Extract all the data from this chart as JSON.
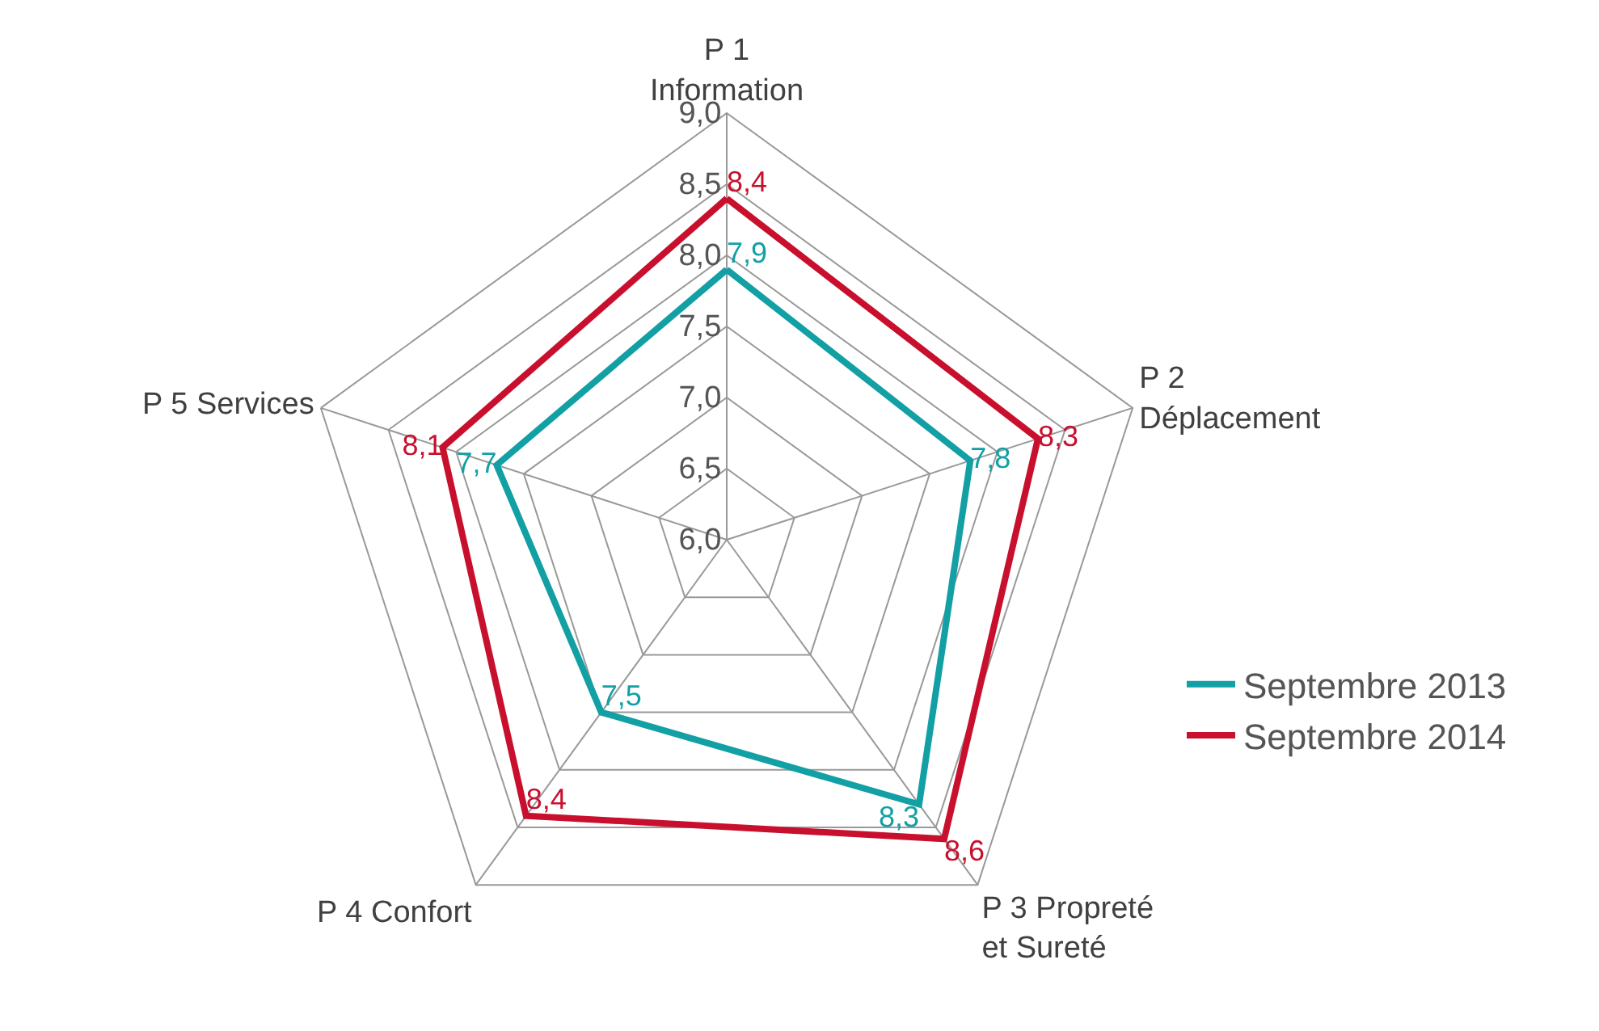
{
  "chart_data": {
    "type": "radar",
    "categories": [
      "P 1\nInformation",
      "P 2\nDéplacement",
      "P 3 Propreté\net Sureté",
      "P 4 Confort",
      "P 5 Services"
    ],
    "series": [
      {
        "name": "Septembre 2013",
        "color": "#12a0a5",
        "values": [
          7.9,
          7.8,
          8.3,
          7.5,
          7.7
        ],
        "value_labels": [
          "7,9",
          "7,8",
          "8,3",
          "7,5",
          "7,7"
        ]
      },
      {
        "name": "Septembre 2014",
        "color": "#c8102e",
        "values": [
          8.4,
          8.3,
          8.6,
          8.4,
          8.1
        ],
        "value_labels": [
          "8,4",
          "8,3",
          "8,6",
          "8,4",
          "8,1"
        ]
      }
    ],
    "ylim": [
      6,
      9
    ],
    "yticks": [
      {
        "value": 6,
        "label": "6,0"
      },
      {
        "value": 6.5,
        "label": "6,5"
      },
      {
        "value": 7,
        "label": "7,0"
      },
      {
        "value": 7.5,
        "label": "7,5"
      },
      {
        "value": 8,
        "label": "8,0"
      },
      {
        "value": 8.5,
        "label": "8,5"
      },
      {
        "value": 9,
        "label": "9,0"
      }
    ],
    "grid": true,
    "legend": "right",
    "marker": "none",
    "line_style": "solid"
  }
}
